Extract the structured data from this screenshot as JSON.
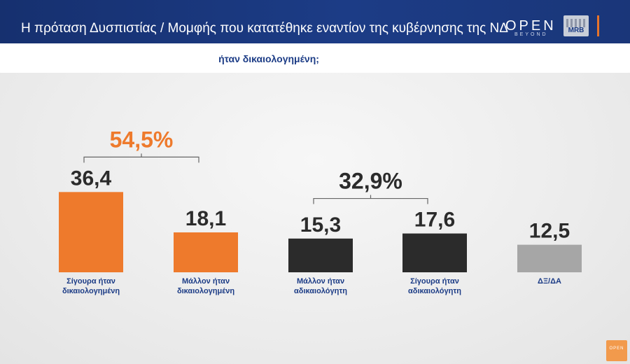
{
  "header": {
    "title": "Η πρόταση Δυσπιστίας / Μομφής που κατατέθηκε εναντίον της κυβέρνησης της ΝΔ",
    "logo_text": "OPEN",
    "logo_sub": "BEYOND",
    "mrb_logo": "MRB"
  },
  "subtitle": "ήταν δικαιολογημένη;",
  "corner_logo": "OPEN",
  "colors": {
    "orange": "#ee7a2c",
    "dark": "#2b2b2b",
    "gray": "#a6a6a6",
    "navy": "#1c3c86"
  },
  "chart_data": {
    "type": "bar",
    "categories": [
      "Σίγουρα ήταν δικαιολογημένη",
      "Μάλλον ήταν δικαιολογημένη",
      "Μάλλον ήταν αδικαιολόγητη",
      "Σίγουρα ήταν αδικαιολόγητη",
      "ΔΞ/ΔΑ"
    ],
    "category_lines": [
      [
        "Σίγουρα ήταν",
        "δικαιολογημένη"
      ],
      [
        "Μάλλον ήταν",
        "δικαιολογημένη"
      ],
      [
        "Μάλλον ήταν",
        "αδικαιολόγητη"
      ],
      [
        "Σίγουρα ήταν",
        "αδικαιολόγητη"
      ],
      [
        "ΔΞ/ΔΑ"
      ]
    ],
    "values": [
      36.4,
      18.1,
      15.3,
      17.6,
      12.5
    ],
    "value_labels": [
      "36,4",
      "18,1",
      "15,3",
      "17,6",
      "12,5"
    ],
    "bar_colors": [
      "#ee7a2c",
      "#ee7a2c",
      "#2b2b2b",
      "#2b2b2b",
      "#a6a6a6"
    ],
    "groups": [
      {
        "label": "54,5%",
        "bars": [
          0,
          1
        ],
        "color": "#ee7a2c"
      },
      {
        "label": "32,9%",
        "bars": [
          2,
          3
        ],
        "color": "#2b2b2b"
      }
    ],
    "grid": false
  }
}
